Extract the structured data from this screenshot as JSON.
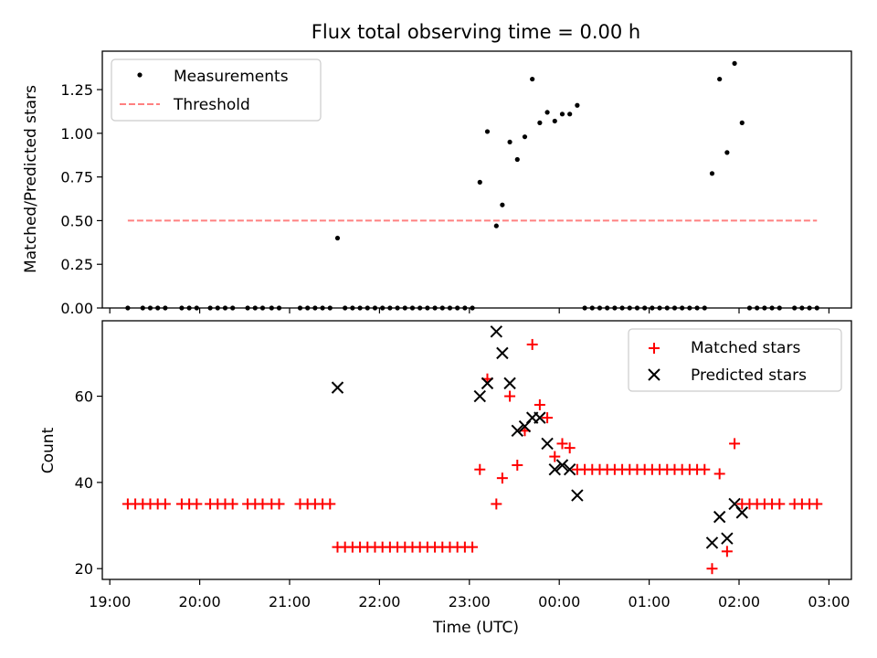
{
  "figure": {
    "title": "Flux total observing time = 0.00 h",
    "xlabel": "Time (UTC)"
  },
  "chart_data": [
    {
      "type": "scatter",
      "panel": "top",
      "ylabel": "Matched/Predicted stars",
      "xlim": [
        "18:55",
        "03:15"
      ],
      "ylim": [
        0,
        1.47
      ],
      "yticks": [
        0,
        0.25,
        0.5,
        0.75,
        1.0,
        1.25
      ],
      "ytick_labels": [
        "0.00",
        "0.25",
        "0.50",
        "0.75",
        "1.00",
        "1.25"
      ],
      "legend": "top-left",
      "threshold": {
        "name": "Threshold",
        "value": 0.5,
        "x": [
          "19:12",
          "02:52"
        ],
        "color": "#ff8080"
      },
      "series": [
        {
          "name": "Measurements",
          "color": "#000000",
          "points": [
            [
              "19:12",
              0
            ],
            [
              "19:22",
              0
            ],
            [
              "19:27",
              0
            ],
            [
              "19:32",
              0
            ],
            [
              "19:37",
              0
            ],
            [
              "19:48",
              0
            ],
            [
              "19:53",
              0
            ],
            [
              "19:58",
              0
            ],
            [
              "20:07",
              0
            ],
            [
              "20:12",
              0
            ],
            [
              "20:17",
              0
            ],
            [
              "20:22",
              0
            ],
            [
              "20:32",
              0
            ],
            [
              "20:37",
              0
            ],
            [
              "20:42",
              0
            ],
            [
              "20:48",
              0
            ],
            [
              "20:53",
              0
            ],
            [
              "21:07",
              0
            ],
            [
              "21:12",
              0
            ],
            [
              "21:17",
              0
            ],
            [
              "21:22",
              0
            ],
            [
              "21:27",
              0
            ],
            [
              "21:32",
              0.4
            ],
            [
              "21:37",
              0
            ],
            [
              "21:42",
              0
            ],
            [
              "21:47",
              0
            ],
            [
              "21:52",
              0
            ],
            [
              "21:57",
              0
            ],
            [
              "22:02",
              0
            ],
            [
              "22:07",
              0
            ],
            [
              "22:12",
              0
            ],
            [
              "22:17",
              0
            ],
            [
              "22:22",
              0
            ],
            [
              "22:27",
              0
            ],
            [
              "22:32",
              0
            ],
            [
              "22:37",
              0
            ],
            [
              "22:42",
              0
            ],
            [
              "22:47",
              0
            ],
            [
              "22:52",
              0
            ],
            [
              "22:57",
              0
            ],
            [
              "23:02",
              0
            ],
            [
              "23:07",
              0.72
            ],
            [
              "23:12",
              1.01
            ],
            [
              "23:18",
              0.47
            ],
            [
              "23:22",
              0.59
            ],
            [
              "23:27",
              0.95
            ],
            [
              "23:32",
              0.85
            ],
            [
              "23:37",
              0.98
            ],
            [
              "23:42",
              1.31
            ],
            [
              "23:47",
              1.06
            ],
            [
              "23:52",
              1.12
            ],
            [
              "23:57",
              1.07
            ],
            [
              "00:02",
              1.11
            ],
            [
              "00:07",
              1.11
            ],
            [
              "00:12",
              1.16
            ],
            [
              "00:17",
              0
            ],
            [
              "00:22",
              0
            ],
            [
              "00:27",
              0
            ],
            [
              "00:32",
              0
            ],
            [
              "00:37",
              0
            ],
            [
              "00:42",
              0
            ],
            [
              "00:47",
              0
            ],
            [
              "00:52",
              0
            ],
            [
              "00:57",
              0
            ],
            [
              "01:02",
              0
            ],
            [
              "01:07",
              0
            ],
            [
              "01:12",
              0
            ],
            [
              "01:17",
              0
            ],
            [
              "01:22",
              0
            ],
            [
              "01:27",
              0
            ],
            [
              "01:32",
              0
            ],
            [
              "01:37",
              0
            ],
            [
              "01:42",
              0.77
            ],
            [
              "01:47",
              1.31
            ],
            [
              "01:52",
              0.89
            ],
            [
              "01:57",
              1.4
            ],
            [
              "02:02",
              1.06
            ],
            [
              "02:07",
              0
            ],
            [
              "02:12",
              0
            ],
            [
              "02:17",
              0
            ],
            [
              "02:22",
              0
            ],
            [
              "02:27",
              0
            ],
            [
              "02:37",
              0
            ],
            [
              "02:42",
              0
            ],
            [
              "02:47",
              0
            ],
            [
              "02:52",
              0
            ]
          ]
        }
      ]
    },
    {
      "type": "scatter",
      "panel": "bottom",
      "ylabel": "Count",
      "xlim": [
        "18:55",
        "03:15"
      ],
      "ylim": [
        17.5,
        77.5
      ],
      "yticks": [
        20,
        40,
        60
      ],
      "ytick_labels": [
        "20",
        "40",
        "60"
      ],
      "xticks": [
        "19:00",
        "20:00",
        "21:00",
        "22:00",
        "23:00",
        "00:00",
        "01:00",
        "02:00",
        "03:00"
      ],
      "legend": "top-right",
      "series": [
        {
          "name": "Matched stars",
          "marker": "plus",
          "color": "#ff0000",
          "points": [
            [
              "19:12",
              35
            ],
            [
              "19:17",
              35
            ],
            [
              "19:22",
              35
            ],
            [
              "19:27",
              35
            ],
            [
              "19:32",
              35
            ],
            [
              "19:37",
              35
            ],
            [
              "19:48",
              35
            ],
            [
              "19:53",
              35
            ],
            [
              "19:58",
              35
            ],
            [
              "20:07",
              35
            ],
            [
              "20:12",
              35
            ],
            [
              "20:17",
              35
            ],
            [
              "20:22",
              35
            ],
            [
              "20:32",
              35
            ],
            [
              "20:37",
              35
            ],
            [
              "20:42",
              35
            ],
            [
              "20:48",
              35
            ],
            [
              "20:53",
              35
            ],
            [
              "21:07",
              35
            ],
            [
              "21:12",
              35
            ],
            [
              "21:17",
              35
            ],
            [
              "21:22",
              35
            ],
            [
              "21:27",
              35
            ],
            [
              "21:32",
              25
            ],
            [
              "21:37",
              25
            ],
            [
              "21:42",
              25
            ],
            [
              "21:47",
              25
            ],
            [
              "21:52",
              25
            ],
            [
              "21:57",
              25
            ],
            [
              "22:02",
              25
            ],
            [
              "22:07",
              25
            ],
            [
              "22:12",
              25
            ],
            [
              "22:17",
              25
            ],
            [
              "22:22",
              25
            ],
            [
              "22:27",
              25
            ],
            [
              "22:32",
              25
            ],
            [
              "22:37",
              25
            ],
            [
              "22:42",
              25
            ],
            [
              "22:47",
              25
            ],
            [
              "22:52",
              25
            ],
            [
              "22:57",
              25
            ],
            [
              "23:02",
              25
            ],
            [
              "23:07",
              43
            ],
            [
              "23:12",
              64
            ],
            [
              "23:18",
              35
            ],
            [
              "23:22",
              41
            ],
            [
              "23:27",
              60
            ],
            [
              "23:32",
              44
            ],
            [
              "23:37",
              52
            ],
            [
              "23:42",
              72
            ],
            [
              "23:47",
              58
            ],
            [
              "23:52",
              55
            ],
            [
              "23:57",
              46
            ],
            [
              "00:02",
              49
            ],
            [
              "00:07",
              48
            ],
            [
              "00:12",
              43
            ],
            [
              "00:17",
              43
            ],
            [
              "00:22",
              43
            ],
            [
              "00:27",
              43
            ],
            [
              "00:32",
              43
            ],
            [
              "00:37",
              43
            ],
            [
              "00:42",
              43
            ],
            [
              "00:47",
              43
            ],
            [
              "00:52",
              43
            ],
            [
              "00:57",
              43
            ],
            [
              "01:02",
              43
            ],
            [
              "01:07",
              43
            ],
            [
              "01:12",
              43
            ],
            [
              "01:17",
              43
            ],
            [
              "01:22",
              43
            ],
            [
              "01:27",
              43
            ],
            [
              "01:32",
              43
            ],
            [
              "01:37",
              43
            ],
            [
              "01:42",
              20
            ],
            [
              "01:47",
              42
            ],
            [
              "01:52",
              24
            ],
            [
              "01:57",
              49
            ],
            [
              "02:02",
              35
            ],
            [
              "02:07",
              35
            ],
            [
              "02:12",
              35
            ],
            [
              "02:17",
              35
            ],
            [
              "02:22",
              35
            ],
            [
              "02:27",
              35
            ],
            [
              "02:37",
              35
            ],
            [
              "02:42",
              35
            ],
            [
              "02:47",
              35
            ],
            [
              "02:52",
              35
            ]
          ]
        },
        {
          "name": "Predicted stars",
          "marker": "x",
          "color": "#000000",
          "points": [
            [
              "21:32",
              62
            ],
            [
              "23:07",
              60
            ],
            [
              "23:12",
              63
            ],
            [
              "23:18",
              75
            ],
            [
              "23:22",
              70
            ],
            [
              "23:27",
              63
            ],
            [
              "23:32",
              52
            ],
            [
              "23:37",
              53
            ],
            [
              "23:42",
              55
            ],
            [
              "23:47",
              55
            ],
            [
              "23:52",
              49
            ],
            [
              "23:57",
              43
            ],
            [
              "00:02",
              44
            ],
            [
              "00:07",
              43
            ],
            [
              "00:12",
              37
            ],
            [
              "01:42",
              26
            ],
            [
              "01:47",
              32
            ],
            [
              "01:52",
              27
            ],
            [
              "01:57",
              35
            ],
            [
              "02:02",
              33
            ]
          ]
        }
      ]
    }
  ]
}
